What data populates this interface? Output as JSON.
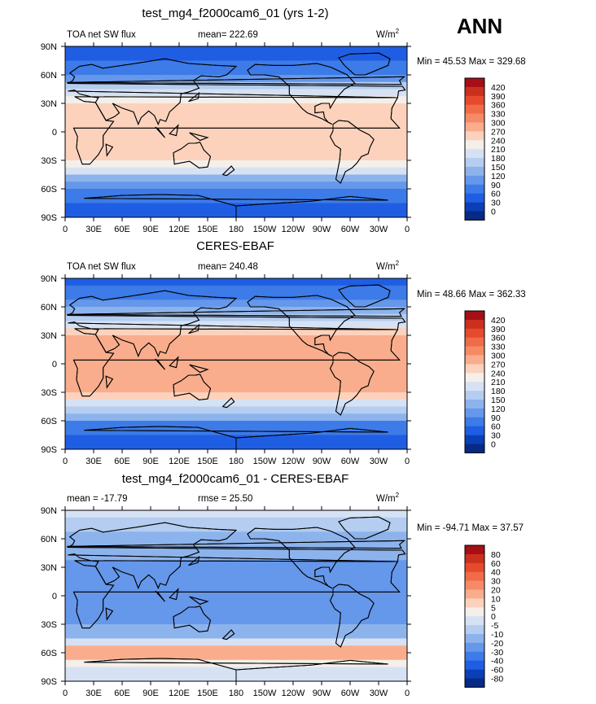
{
  "season": "ANN",
  "chart_data": [
    {
      "type": "heatmap",
      "title": "test_mg4_f2000cam6_01 (yrs 1-2)",
      "variable": "TOA net SW flux",
      "stat_left": "",
      "stat_right": "mean= 222.69",
      "units": "W/m",
      "units_sup": "2",
      "min": 45.53,
      "max": 329.68,
      "minmax_text": "Min =  45.53 Max = 329.68",
      "levels": [
        "420",
        "390",
        "360",
        "330",
        "300",
        "270",
        "240",
        "210",
        "180",
        "150",
        "120",
        "90",
        "60",
        "30",
        "0"
      ],
      "colors": [
        "#a50f15",
        "#cb2f1e",
        "#e64a2c",
        "#f06b47",
        "#f58b66",
        "#f9ad8c",
        "#fcd2bc",
        "#f4efe9",
        "#d6e2f3",
        "#b4cdf0",
        "#8db3ec",
        "#6597ea",
        "#3c7be8",
        "#1f5ee3",
        "#0a3fb8",
        "#072a85"
      ],
      "xlabels": [
        "0",
        "30E",
        "60E",
        "90E",
        "120E",
        "150E",
        "180",
        "150W",
        "120W",
        "90W",
        "60W",
        "30W",
        "0"
      ],
      "ylabels": [
        "90N",
        "60N",
        "30N",
        "0",
        "30S",
        "60S",
        "90S"
      ],
      "xlim": [
        0,
        360
      ],
      "ylim": [
        -90,
        90
      ],
      "lat_profile": [
        {
          "lat": 90,
          "value": 45
        },
        {
          "lat": 75,
          "value": 60
        },
        {
          "lat": 60,
          "value": 95
        },
        {
          "lat": 45,
          "value": 175
        },
        {
          "lat": 30,
          "value": 250
        },
        {
          "lat": 15,
          "value": 265
        },
        {
          "lat": 0,
          "value": 255
        },
        {
          "lat": -15,
          "value": 265
        },
        {
          "lat": -30,
          "value": 250
        },
        {
          "lat": -45,
          "value": 170
        },
        {
          "lat": -60,
          "value": 85
        },
        {
          "lat": -75,
          "value": 55
        },
        {
          "lat": -90,
          "value": 45
        }
      ]
    },
    {
      "type": "heatmap",
      "title": "CERES-EBAF",
      "variable": "TOA net SW flux",
      "stat_left": "",
      "stat_right": "mean= 240.48",
      "units": "W/m",
      "units_sup": "2",
      "min": 48.66,
      "max": 362.33,
      "minmax_text": "Min =  48.66 Max = 362.33",
      "levels": [
        "420",
        "390",
        "360",
        "330",
        "300",
        "270",
        "240",
        "210",
        "180",
        "150",
        "120",
        "90",
        "60",
        "30",
        "0"
      ],
      "colors": [
        "#a50f15",
        "#cb2f1e",
        "#e64a2c",
        "#f06b47",
        "#f58b66",
        "#f9ad8c",
        "#fcd2bc",
        "#f4efe9",
        "#d6e2f3",
        "#b4cdf0",
        "#8db3ec",
        "#6597ea",
        "#3c7be8",
        "#1f5ee3",
        "#0a3fb8",
        "#072a85"
      ],
      "xlabels": [
        "0",
        "30E",
        "60E",
        "90E",
        "120E",
        "150E",
        "180",
        "150W",
        "120W",
        "90W",
        "60W",
        "30W",
        "0"
      ],
      "ylabels": [
        "90N",
        "60N",
        "30N",
        "0",
        "30S",
        "60S",
        "90S"
      ],
      "xlim": [
        0,
        360
      ],
      "ylim": [
        -90,
        90
      ],
      "lat_profile": [
        {
          "lat": 90,
          "value": 50
        },
        {
          "lat": 75,
          "value": 65
        },
        {
          "lat": 60,
          "value": 110
        },
        {
          "lat": 45,
          "value": 185
        },
        {
          "lat": 30,
          "value": 275
        },
        {
          "lat": 15,
          "value": 300
        },
        {
          "lat": 0,
          "value": 290
        },
        {
          "lat": -15,
          "value": 300
        },
        {
          "lat": -30,
          "value": 275
        },
        {
          "lat": -45,
          "value": 185
        },
        {
          "lat": -60,
          "value": 100
        },
        {
          "lat": -75,
          "value": 60
        },
        {
          "lat": -90,
          "value": 50
        }
      ]
    },
    {
      "type": "heatmap",
      "title": "test_mg4_f2000cam6_01 - CERES-EBAF",
      "variable": "",
      "stat_left": "mean = -17.79",
      "stat_right": "rmse =  25.50",
      "units": "W/m",
      "units_sup": "2",
      "min": -94.71,
      "max": 37.57,
      "minmax_text": "Min = -94.71 Max =  37.57",
      "levels": [
        "80",
        "60",
        "40",
        "30",
        "20",
        "10",
        "5",
        "0",
        "-5",
        "-10",
        "-20",
        "-30",
        "-40",
        "-60",
        "-80"
      ],
      "colors": [
        "#a50f15",
        "#cb2f1e",
        "#e64a2c",
        "#f06b47",
        "#f58b66",
        "#f9ad8c",
        "#fcd2bc",
        "#f4efe9",
        "#d6e2f3",
        "#b4cdf0",
        "#8db3ec",
        "#6597ea",
        "#3c7be8",
        "#1f5ee3",
        "#0a3fb8",
        "#072a85"
      ],
      "xlabels": [
        "0",
        "30E",
        "60E",
        "90E",
        "120E",
        "150E",
        "180",
        "150W",
        "120W",
        "90W",
        "60W",
        "30W",
        "0"
      ],
      "ylabels": [
        "90N",
        "60N",
        "30N",
        "0",
        "30S",
        "60S",
        "90S"
      ],
      "xlim": [
        0,
        360
      ],
      "ylim": [
        -90,
        90
      ],
      "lat_profile": [
        {
          "lat": 90,
          "value": -3
        },
        {
          "lat": 75,
          "value": -8
        },
        {
          "lat": 60,
          "value": -12
        },
        {
          "lat": 45,
          "value": -18
        },
        {
          "lat": 30,
          "value": -25
        },
        {
          "lat": 15,
          "value": -30
        },
        {
          "lat": 0,
          "value": -25
        },
        {
          "lat": -15,
          "value": -30
        },
        {
          "lat": -30,
          "value": -22
        },
        {
          "lat": -45,
          "value": -12
        },
        {
          "lat": -60,
          "value": 22
        },
        {
          "lat": -75,
          "value": -5
        },
        {
          "lat": -90,
          "value": -3
        }
      ]
    }
  ]
}
